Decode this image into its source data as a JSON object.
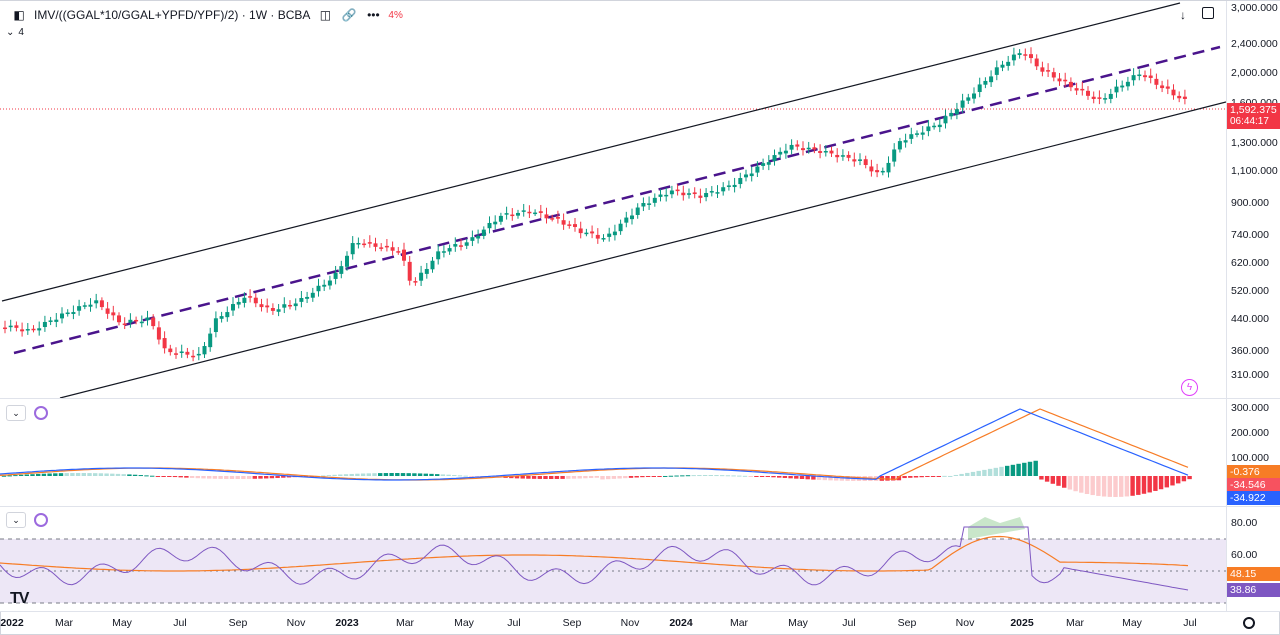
{
  "header": {
    "symbol": "IMV/((GGAL*10/GGAL+YPFD/YPF)/2) · 1W · BCBA",
    "change_text": "4%",
    "collapse_label": "4"
  },
  "price_axis": {
    "ticks": [
      "3,000.000",
      "2,400.000",
      "2,000.000",
      "1,600.000",
      "1,300.000",
      "1,100.000",
      "900.000",
      "740.000",
      "620.000",
      "520.000",
      "440.000",
      "360.000",
      "310.000"
    ],
    "last_price": "1,592.375",
    "countdown": "06:44:17",
    "last_color": "#f23645"
  },
  "macd_axis": {
    "ticks": [
      "300.000",
      "200.000",
      "100.000"
    ],
    "badges": [
      {
        "text": "-0.376",
        "color": "#f77c25"
      },
      {
        "text": "-34.546",
        "color": "#f7525f"
      },
      {
        "text": "-34.922",
        "color": "#2962ff"
      }
    ]
  },
  "rsi_axis": {
    "ticks": [
      "80.00",
      "60.00"
    ],
    "badges": [
      {
        "text": "48.15",
        "color": "#f77c25"
      },
      {
        "text": "38.86",
        "color": "#7e57c2"
      }
    ]
  },
  "time_axis": [
    {
      "label": "2022",
      "year": true
    },
    {
      "label": "Mar"
    },
    {
      "label": "May"
    },
    {
      "label": "Jul"
    },
    {
      "label": "Sep"
    },
    {
      "label": "Nov"
    },
    {
      "label": "2023",
      "year": true
    },
    {
      "label": "Mar"
    },
    {
      "label": "May"
    },
    {
      "label": "Jul"
    },
    {
      "label": "Sep"
    },
    {
      "label": "Nov"
    },
    {
      "label": "2024",
      "year": true
    },
    {
      "label": "Mar"
    },
    {
      "label": "May"
    },
    {
      "label": "Jul"
    },
    {
      "label": "Sep"
    },
    {
      "label": "Nov"
    },
    {
      "label": "2025",
      "year": true
    },
    {
      "label": "Mar"
    },
    {
      "label": "May"
    },
    {
      "label": "Jul"
    }
  ],
  "logo_text": "TV",
  "colors": {
    "up": "#089981",
    "down": "#f23645",
    "channel": "#131722",
    "midline": "#4a148c",
    "rsi_band": "#ede7f6",
    "macd_line": "#2962ff",
    "signal_line": "#f77c25",
    "rsi_line": "#7e57c2"
  },
  "icons": [
    "pin-icon",
    "eye-off-icon",
    "link-icon",
    "more-icon",
    "download-icon",
    "fullscreen-icon",
    "lightning-icon",
    "chevron-down-icon",
    "sync-icon",
    "settings-icon"
  ]
}
